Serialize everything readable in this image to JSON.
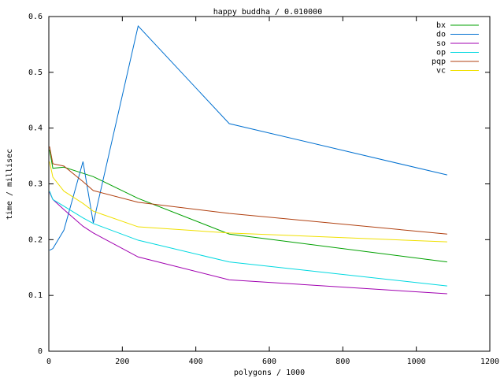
{
  "chart_data": {
    "type": "line",
    "title": "happy buddha / 0.010000",
    "x_label": "polygons / 1000",
    "y_label": "time / millisec",
    "x": [
      2,
      11,
      41,
      93,
      121,
      243,
      491,
      1084
    ],
    "series": [
      {
        "name": "bx",
        "color": "#00a000",
        "values": [
          0.361,
          0.328,
          0.33,
          0.319,
          0.313,
          0.274,
          0.21,
          0.16
        ]
      },
      {
        "name": "do",
        "color": "#0070d0",
        "values": [
          0.181,
          0.184,
          0.217,
          0.34,
          0.23,
          0.583,
          0.408,
          0.316
        ]
      },
      {
        "name": "so",
        "color": "#a000b0",
        "values": [
          0.285,
          0.272,
          0.254,
          0.224,
          0.212,
          0.169,
          0.128,
          0.103
        ]
      },
      {
        "name": "op",
        "color": "#00d8e0",
        "values": [
          0.287,
          0.272,
          0.26,
          0.239,
          0.229,
          0.199,
          0.16,
          0.117
        ]
      },
      {
        "name": "pqp",
        "color": "#b04010",
        "values": [
          0.367,
          0.336,
          0.332,
          0.304,
          0.288,
          0.267,
          0.247,
          0.21
        ]
      },
      {
        "name": "vc",
        "color": "#f0e000",
        "values": [
          0.34,
          0.312,
          0.287,
          0.265,
          0.251,
          0.223,
          0.212,
          0.196
        ]
      }
    ],
    "xlim": [
      0,
      1200
    ],
    "xticks": [
      0,
      200,
      400,
      600,
      800,
      1000,
      1200
    ],
    "ylim": [
      0,
      0.6
    ],
    "yticks": [
      0,
      0.1,
      0.2,
      0.3,
      0.4,
      0.5,
      0.6
    ],
    "legend": "top-right"
  }
}
